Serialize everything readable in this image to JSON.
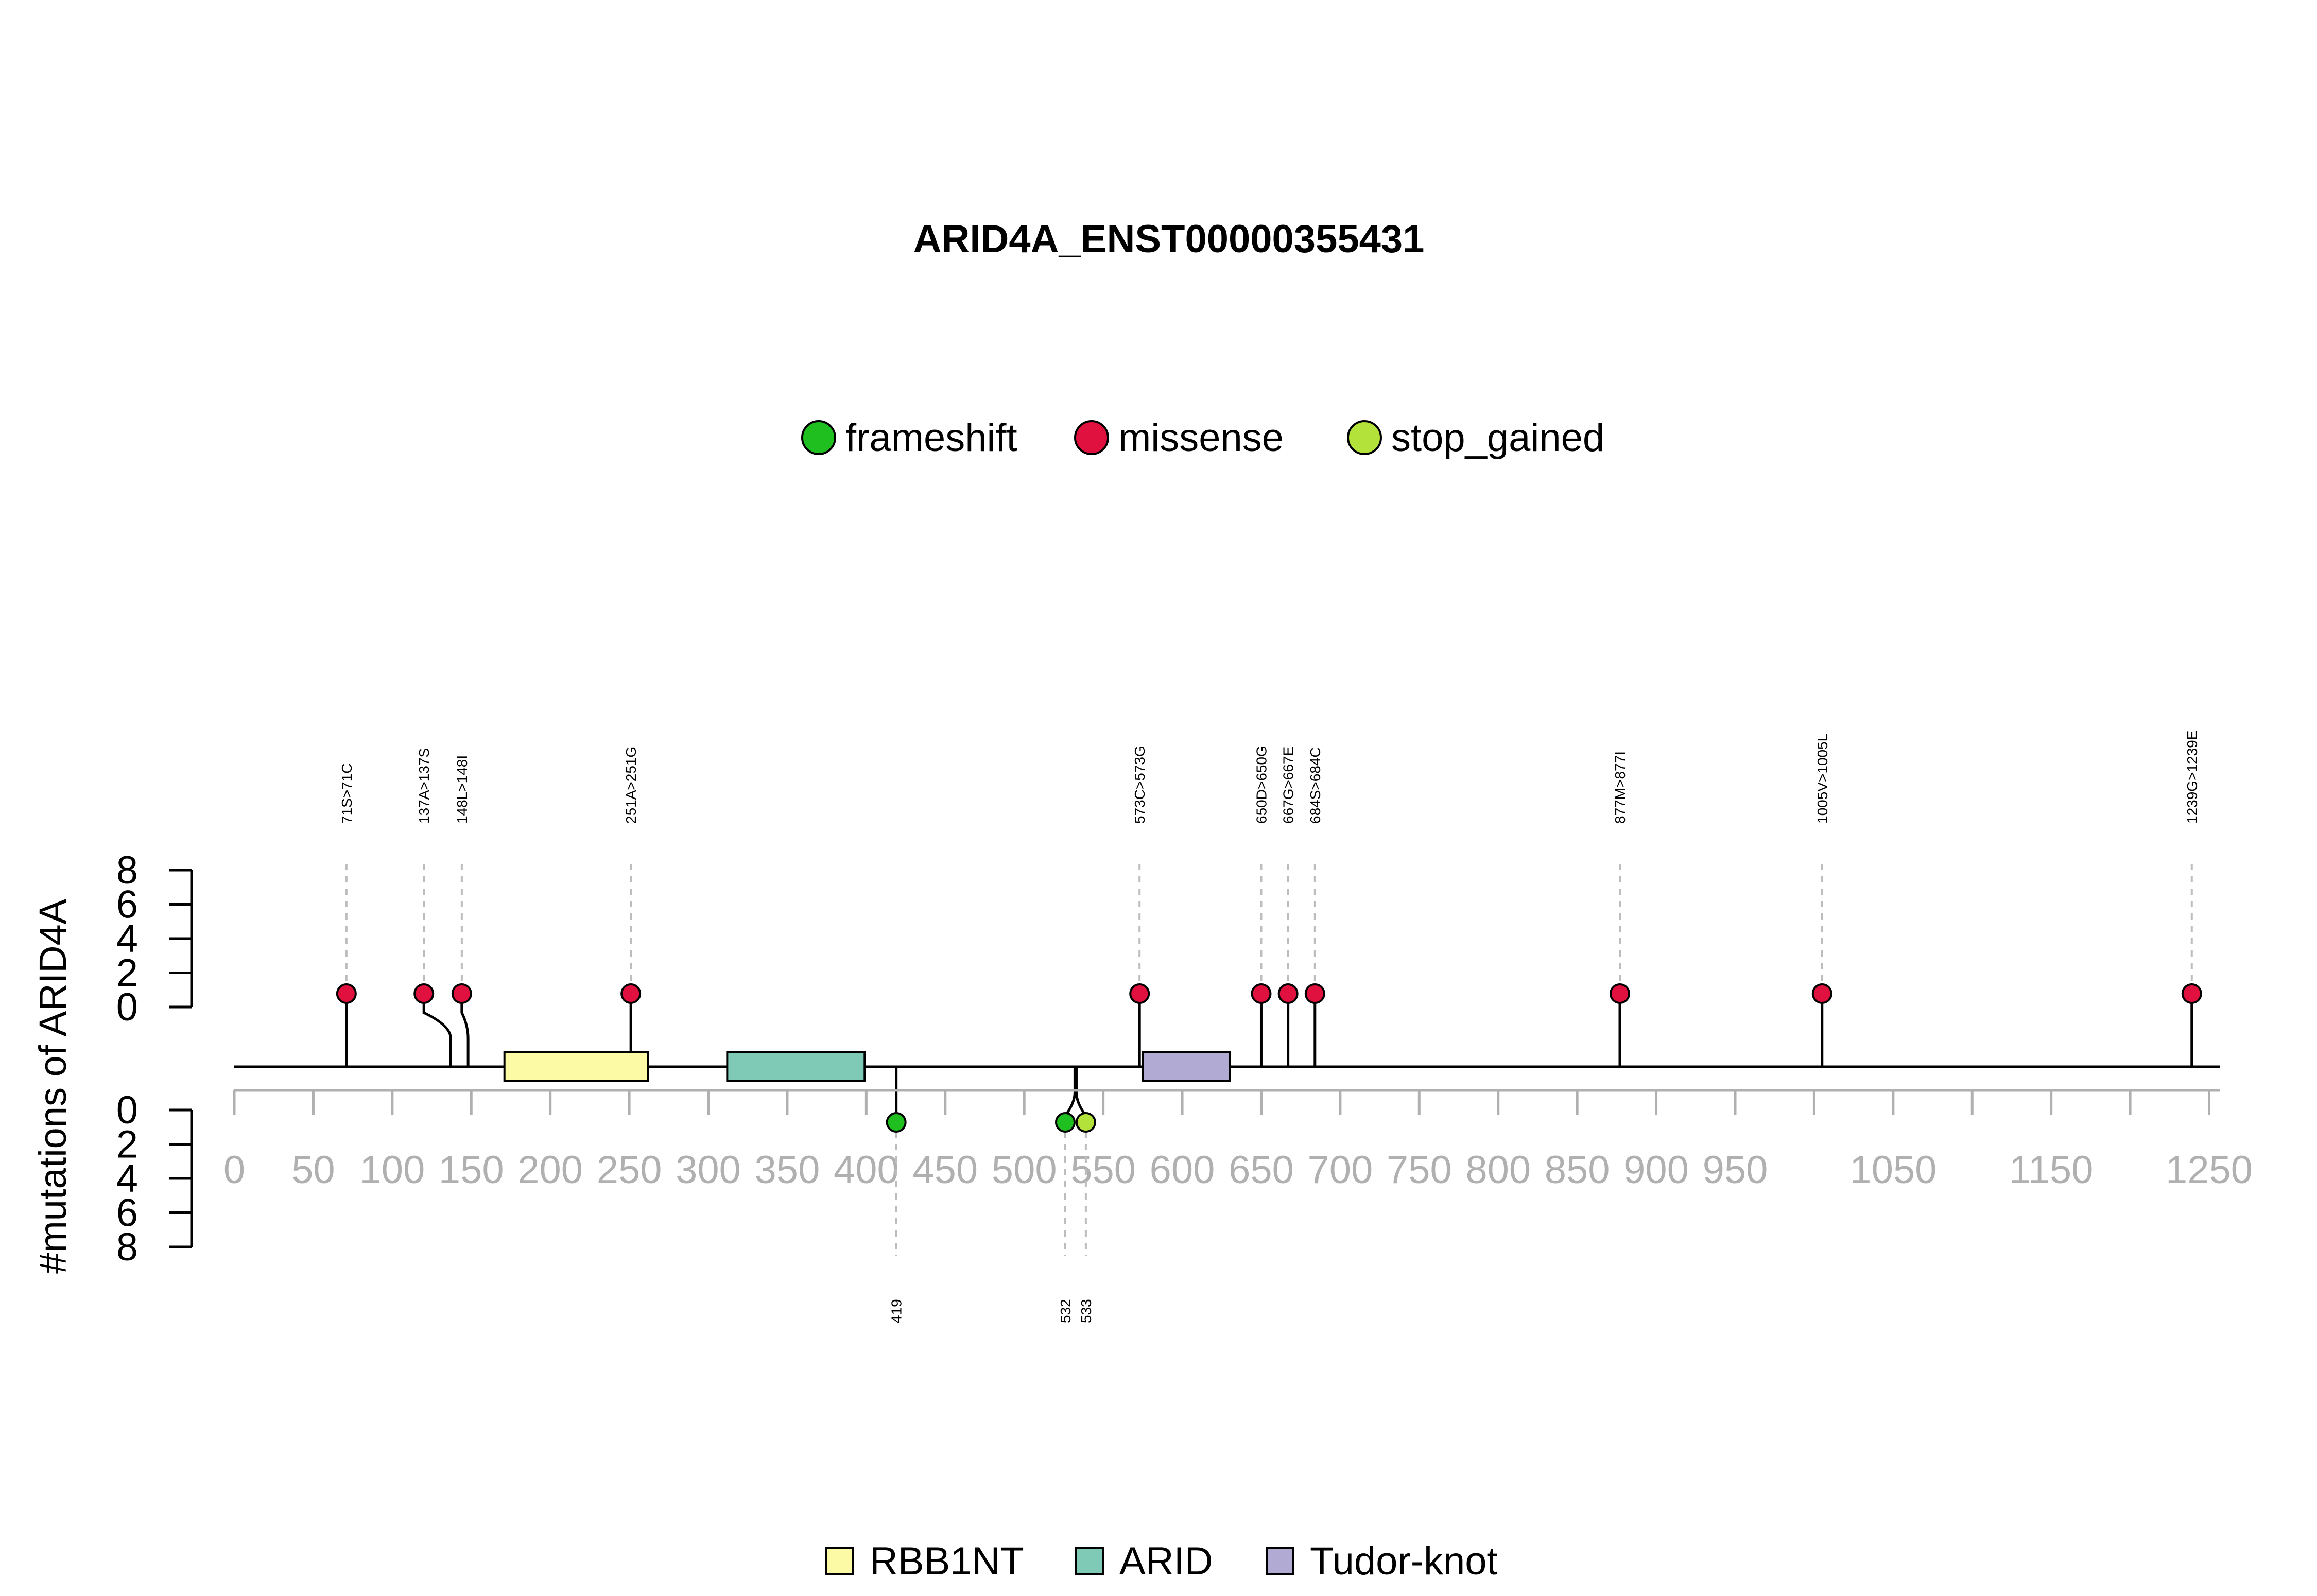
{
  "chart_data": {
    "type": "lollipop",
    "title": "ARID4A_ENST00000355431",
    "ylabel": "#mutations of ARID4A",
    "x_range": [
      0,
      1257
    ],
    "x_ticks": [
      0,
      50,
      100,
      150,
      200,
      250,
      300,
      350,
      400,
      450,
      500,
      550,
      600,
      650,
      700,
      750,
      800,
      850,
      900,
      950,
      1000,
      1050,
      1100,
      1150,
      1200,
      1250
    ],
    "x_tick_labels": [
      "0",
      "50",
      "100",
      "150",
      "200",
      "250",
      "300",
      "350",
      "400",
      "450",
      "500",
      "550",
      "600",
      "650",
      "700",
      "750",
      "800",
      "850",
      "900",
      "950",
      "",
      "1050",
      "",
      "1150",
      "",
      "1250"
    ],
    "y_ticks_top": [
      "8",
      "6",
      "4",
      "2",
      "0"
    ],
    "y_ticks_bottom": [
      "0",
      "2",
      "4",
      "6",
      "8"
    ],
    "y_range": [
      0,
      8
    ],
    "legend_mutations": [
      {
        "name": "frameshift",
        "color": "#1fbf1f"
      },
      {
        "name": "missense",
        "color": "#e0103f"
      },
      {
        "name": "stop_gained",
        "color": "#b3e23a"
      }
    ],
    "legend_domains": [
      {
        "name": "RBB1NT",
        "color": "#fdfaa6"
      },
      {
        "name": "ARID",
        "color": "#7ecab6"
      },
      {
        "name": "Tudor-knot",
        "color": "#b1abd3"
      }
    ],
    "domains": [
      {
        "name": "RBB1NT",
        "start": 171,
        "end": 262,
        "color": "#fdfaa6"
      },
      {
        "name": "ARID",
        "start": 312,
        "end": 399,
        "color": "#7ecab6"
      },
      {
        "name": "Tudor-knot",
        "start": 575,
        "end": 630,
        "color": "#b1abd3"
      }
    ],
    "mutations_top": [
      {
        "pos": 71,
        "label": "71S>71C",
        "type": "missense",
        "count": 1
      },
      {
        "pos": 137,
        "label": "137A>137S",
        "type": "missense",
        "count": 1
      },
      {
        "pos": 148,
        "label": "148L>148I",
        "type": "missense",
        "count": 1
      },
      {
        "pos": 251,
        "label": "251A>251G",
        "type": "missense",
        "count": 1
      },
      {
        "pos": 573,
        "label": "573C>573G",
        "type": "missense",
        "count": 1
      },
      {
        "pos": 650,
        "label": "650D>650G",
        "type": "missense",
        "count": 1
      },
      {
        "pos": 667,
        "label": "667G>667E",
        "type": "missense",
        "count": 1
      },
      {
        "pos": 684,
        "label": "684S>684C",
        "type": "missense",
        "count": 1
      },
      {
        "pos": 877,
        "label": "877M>877I",
        "type": "missense",
        "count": 1
      },
      {
        "pos": 1005,
        "label": "1005V>1005L",
        "type": "missense",
        "count": 1
      },
      {
        "pos": 1239,
        "label": "1239G>1239E",
        "type": "missense",
        "count": 1
      }
    ],
    "mutations_bottom": [
      {
        "pos": 419,
        "label": "419",
        "type": "frameshift",
        "count": 1
      },
      {
        "pos": 532,
        "label": "532",
        "type": "frameshift",
        "count": 1
      },
      {
        "pos": 533,
        "label": "533",
        "type": "stop_gained",
        "count": 1
      }
    ]
  }
}
